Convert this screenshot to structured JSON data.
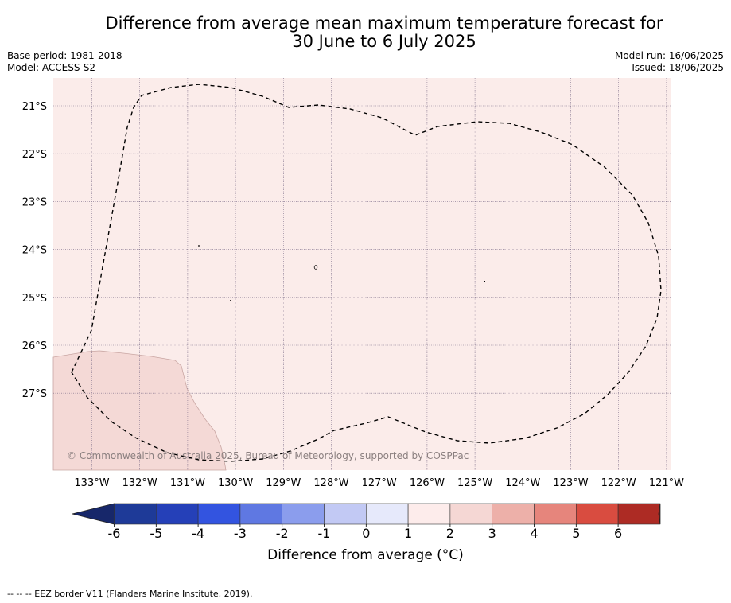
{
  "title": {
    "line1": "Difference from average mean maximum temperature forecast for",
    "line2": "30 June to 6 July 2025"
  },
  "meta": {
    "base_period": "Base period: 1981-2018",
    "model": "Model: ACCESS-S2",
    "model_run": "Model run: 16/06/2025",
    "issued": "Issued: 18/06/2025"
  },
  "map": {
    "background_fill": "#fbecea",
    "warmer_fill": "#f4d9d6",
    "grid_color": "#7a6a86",
    "latitudes": [
      "21°S",
      "22°S",
      "23°S",
      "24°S",
      "25°S",
      "26°S",
      "27°S"
    ],
    "longitudes": [
      "133°W",
      "132°W",
      "131°W",
      "130°W",
      "129°W",
      "128°W",
      "127°W",
      "126°W",
      "125°W",
      "124°W",
      "123°W",
      "122°W",
      "121°W"
    ],
    "copyright": "© Commonwealth of Australia 2025, Bureau of Meteorology, supported by COSPPac"
  },
  "colorbar": {
    "ticks": [
      "-6",
      "-5",
      "-4",
      "-3",
      "-2",
      "-1",
      "0",
      "1",
      "2",
      "3",
      "4",
      "5",
      "6"
    ],
    "colors": [
      "#1e3a98",
      "#2540b8",
      "#3354e0",
      "#5f78e2",
      "#8b9ded",
      "#c2c9f4",
      "#e6e9fb",
      "#fdeceb",
      "#f5d7d4",
      "#edb0a9",
      "#e6857c",
      "#d94c40",
      "#ad2b24"
    ],
    "low_extend_color": "#17276a",
    "high_extend_color": "#6e1a17",
    "label": "Difference from average (°C)"
  },
  "footnote": "-- -- -- EEZ border V11 (Flanders Marine Institute, 2019)."
}
